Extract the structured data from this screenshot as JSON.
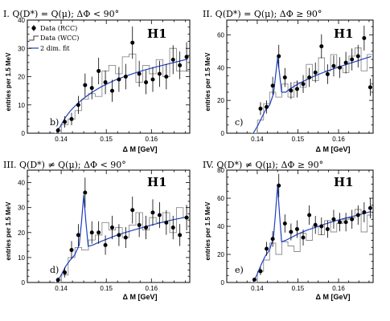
{
  "chart_data": [
    {
      "type": "scatter",
      "title": "I. Q(D*) = Q(μ); ΔΦ < 90°",
      "panel_label": "b)",
      "logo": "H1",
      "xlabel": "Δ M  [GeV]",
      "ylabel": "entries per 1.5 MeV",
      "xlim": [
        0.1325,
        0.1685
      ],
      "ylim": [
        0,
        40
      ],
      "xticks": [
        "0.14",
        "0.15",
        "0.16"
      ],
      "yticks": [
        "0",
        "10",
        "20",
        "30",
        "40"
      ],
      "legend": {
        "placement": "top-left",
        "entries": [
          "Data (RCC)",
          "Data (WCC)",
          "2 dim. fit"
        ]
      },
      "series": [
        {
          "name": "Data (RCC)",
          "x": [
            0.1393,
            0.1408,
            0.1423,
            0.1438,
            0.1453,
            0.1468,
            0.1483,
            0.1498,
            0.1513,
            0.1528,
            0.1543,
            0.1558,
            0.1573,
            0.1588,
            0.1603,
            0.1618,
            0.1633,
            0.1648,
            0.1663,
            0.1678
          ],
          "y": [
            1,
            4,
            5,
            10,
            17,
            16,
            22,
            18,
            15,
            19,
            20,
            32,
            21,
            18,
            19,
            21,
            20,
            26,
            24,
            27
          ],
          "err": [
            1,
            2,
            2.2,
            3.2,
            4.1,
            4,
            4.7,
            4.2,
            3.9,
            4.4,
            4.5,
            5.7,
            4.6,
            4.2,
            4.4,
            4.6,
            4.5,
            5.1,
            4.9,
            5.2
          ]
        },
        {
          "name": "Data (WCC)",
          "x": [
            0.1393,
            0.1408,
            0.1423,
            0.1438,
            0.1453,
            0.1468,
            0.1483,
            0.1498,
            0.1513,
            0.1528,
            0.1543,
            0.1558,
            0.1573,
            0.1588,
            0.1603,
            0.1618,
            0.1633,
            0.1648,
            0.1663,
            0.1678
          ],
          "y": [
            0,
            3,
            5,
            8,
            12,
            14,
            13,
            22,
            24,
            21,
            27,
            28,
            18,
            24,
            21,
            26,
            20,
            30,
            22,
            22
          ]
        },
        {
          "name": "2 dim. fit",
          "x": [
            0.139,
            0.14,
            0.141,
            0.142,
            0.143,
            0.144,
            0.145,
            0.146,
            0.147,
            0.148,
            0.149,
            0.15,
            0.152,
            0.154,
            0.156,
            0.158,
            0.16,
            0.162,
            0.164,
            0.166,
            0.168
          ],
          "y": [
            0,
            3,
            5.7,
            7.8,
            9.5,
            11,
            12.3,
            13.5,
            14.6,
            15.6,
            16.5,
            17.3,
            18.8,
            20,
            21.1,
            22.1,
            23,
            23.8,
            24.6,
            25.4,
            26.2
          ]
        }
      ]
    },
    {
      "type": "scatter",
      "title": "II. Q(D*) = Q(μ); ΔΦ ≥ 90°",
      "panel_label": "c)",
      "logo": "H1",
      "xlabel": "Δ M  [GeV]",
      "ylabel": "entries per 1.5 MeV",
      "xlim": [
        0.1325,
        0.1685
      ],
      "ylim": [
        0,
        69
      ],
      "xticks": [
        "0.14",
        "0.15",
        "0.16"
      ],
      "yticks": [
        "0",
        "20",
        "40",
        "60"
      ],
      "series": [
        {
          "name": "Data (RCC)",
          "x": [
            0.1408,
            0.1423,
            0.1438,
            0.1453,
            0.1468,
            0.1483,
            0.1498,
            0.1513,
            0.1528,
            0.1543,
            0.1558,
            0.1573,
            0.1588,
            0.1603,
            0.1618,
            0.1633,
            0.1648,
            0.1663,
            0.1678
          ],
          "y": [
            15,
            16,
            29,
            47,
            34,
            26,
            27,
            30,
            34,
            37,
            53,
            36,
            41,
            40,
            43,
            45,
            47,
            58,
            28
          ],
          "err": [
            3.9,
            4,
            5.4,
            6.9,
            5.8,
            5.1,
            5.2,
            5.5,
            5.8,
            6.1,
            7.3,
            6,
            6.4,
            6.3,
            6.6,
            6.7,
            6.9,
            7.6,
            5.3
          ]
        },
        {
          "name": "Data (WCC)",
          "x": [
            0.1393,
            0.1408,
            0.1423,
            0.1438,
            0.1453,
            0.1468,
            0.1483,
            0.1498,
            0.1513,
            0.1528,
            0.1543,
            0.1558,
            0.1573,
            0.1588,
            0.1603,
            0.1618,
            0.1633,
            0.1648,
            0.1663,
            0.1678
          ],
          "y": [
            0,
            8,
            18,
            25,
            22,
            30,
            22,
            31,
            28,
            42,
            32,
            46,
            38,
            48,
            40,
            37,
            47,
            52,
            38,
            48
          ]
        },
        {
          "name": "2 dim. fit",
          "x": [
            0.139,
            0.14,
            0.141,
            0.142,
            0.143,
            0.144,
            0.1445,
            0.145,
            0.1455,
            0.146,
            0.147,
            0.148,
            0.149,
            0.15,
            0.152,
            0.154,
            0.156,
            0.158,
            0.16,
            0.162,
            0.164,
            0.166,
            0.168
          ],
          "y": [
            0,
            4,
            9,
            14,
            17,
            24,
            35,
            46,
            36,
            25,
            25,
            27,
            28.5,
            30,
            32.5,
            34.8,
            36.8,
            38.6,
            40.3,
            42,
            43.6,
            45.2,
            46.8
          ]
        }
      ]
    },
    {
      "type": "scatter",
      "title": "III. Q(D*) ≠ Q(μ); ΔΦ < 90°",
      "panel_label": "d)",
      "logo": "H1",
      "xlabel": "Δ M  [GeV]",
      "ylabel": "entries per 1.5 MeV",
      "xlim": [
        0.1325,
        0.1685
      ],
      "ylim": [
        0,
        45
      ],
      "xticks": [
        "0.14",
        "0.15",
        "0.16"
      ],
      "yticks": [
        "0",
        "10",
        "20",
        "30",
        "40"
      ],
      "series": [
        {
          "name": "Data (RCC)",
          "x": [
            0.1393,
            0.1408,
            0.1423,
            0.1438,
            0.1453,
            0.1468,
            0.1483,
            0.1498,
            0.1513,
            0.1528,
            0.1543,
            0.1558,
            0.1573,
            0.1588,
            0.1603,
            0.1618,
            0.1633,
            0.1648,
            0.1663,
            0.1678
          ],
          "y": [
            1,
            4,
            13,
            19,
            36,
            20,
            20,
            15,
            22,
            19,
            18,
            29,
            23,
            22,
            28,
            27,
            24,
            22,
            19,
            26
          ],
          "err": [
            1,
            2,
            3.6,
            4.4,
            6,
            4.5,
            4.5,
            3.9,
            4.7,
            4.4,
            4.2,
            5.4,
            4.8,
            4.7,
            5.3,
            5.2,
            4.9,
            4.7,
            4.4,
            5.1
          ]
        },
        {
          "name": "Data (WCC)",
          "x": [
            0.1393,
            0.1408,
            0.1423,
            0.1438,
            0.1453,
            0.1468,
            0.1483,
            0.1498,
            0.1513,
            0.1528,
            0.1543,
            0.1558,
            0.1573,
            0.1588,
            0.1603,
            0.1618,
            0.1633,
            0.1648,
            0.1663,
            0.1678
          ],
          "y": [
            0,
            3,
            10,
            14,
            13,
            17,
            19,
            24,
            21,
            22,
            18,
            23,
            28,
            21,
            26,
            24,
            28,
            20,
            30,
            26
          ]
        },
        {
          "name": "2 dim. fit",
          "x": [
            0.139,
            0.14,
            0.141,
            0.142,
            0.143,
            0.144,
            0.1445,
            0.145,
            0.1455,
            0.146,
            0.147,
            0.148,
            0.149,
            0.15,
            0.152,
            0.154,
            0.156,
            0.158,
            0.16,
            0.162,
            0.164,
            0.166,
            0.168
          ],
          "y": [
            0,
            3,
            6.5,
            9,
            11,
            15,
            24,
            35,
            24,
            14.5,
            15,
            15.8,
            16.6,
            17.3,
            18.7,
            19.9,
            21,
            22,
            23,
            23.9,
            24.8,
            25.6,
            26.3
          ]
        }
      ]
    },
    {
      "type": "scatter",
      "title": "IV. Q(D*) ≠ Q(μ); ΔΦ ≥ 90°",
      "panel_label": "e)",
      "logo": "H1",
      "xlabel": "Δ M  [GeV]",
      "ylabel": "entries per 1.5 MeV",
      "xlim": [
        0.1325,
        0.1685
      ],
      "ylim": [
        0,
        80
      ],
      "xticks": [
        "0.14",
        "0.15",
        "0.16"
      ],
      "yticks": [
        "0",
        "20",
        "40",
        "60",
        "80"
      ],
      "series": [
        {
          "name": "Data (RCC)",
          "x": [
            0.1393,
            0.1408,
            0.1423,
            0.1438,
            0.1453,
            0.1468,
            0.1483,
            0.1498,
            0.1513,
            0.1528,
            0.1543,
            0.1558,
            0.1573,
            0.1588,
            0.1603,
            0.1618,
            0.1633,
            0.1648,
            0.1663,
            0.1678
          ],
          "y": [
            2,
            8,
            24,
            31,
            69,
            42,
            36,
            38,
            32,
            48,
            41,
            40,
            38,
            45,
            43,
            43,
            45,
            48,
            50,
            53
          ],
          "err": [
            1.4,
            2.8,
            4.9,
            5.6,
            8.3,
            6.5,
            6,
            6.2,
            5.7,
            6.9,
            6.4,
            6.3,
            6.2,
            6.7,
            6.6,
            6.6,
            6.7,
            6.9,
            7.1,
            7.3
          ]
        },
        {
          "name": "Data (WCC)",
          "x": [
            0.1393,
            0.1408,
            0.1423,
            0.1438,
            0.1453,
            0.1468,
            0.1483,
            0.1498,
            0.1513,
            0.1528,
            0.1543,
            0.1558,
            0.1573,
            0.1588,
            0.1603,
            0.1618,
            0.1633,
            0.1648,
            0.1663,
            0.1678
          ],
          "y": [
            0,
            8,
            16,
            28,
            20,
            29,
            26,
            22,
            35,
            30,
            40,
            34,
            44,
            36,
            42,
            45,
            46,
            52,
            36,
            48
          ]
        },
        {
          "name": "2 dim. fit",
          "x": [
            0.139,
            0.14,
            0.141,
            0.142,
            0.143,
            0.144,
            0.1445,
            0.145,
            0.1455,
            0.146,
            0.147,
            0.148,
            0.149,
            0.15,
            0.152,
            0.154,
            0.156,
            0.158,
            0.16,
            0.162,
            0.164,
            0.166,
            0.168
          ],
          "y": [
            0,
            6,
            13,
            19,
            23,
            32,
            50,
            69,
            48,
            29,
            30,
            31.5,
            33,
            34.5,
            37,
            39,
            41,
            42.8,
            44.5,
            46,
            47.5,
            49,
            50.5
          ]
        }
      ]
    }
  ]
}
